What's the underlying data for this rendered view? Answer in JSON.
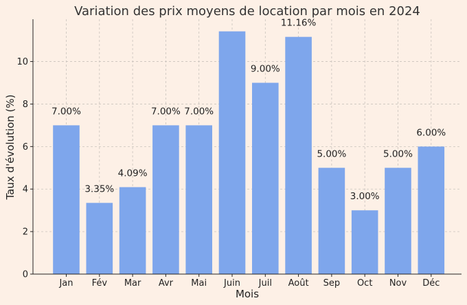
{
  "chart_data": {
    "type": "bar",
    "title": "Variation des prix moyens de location par mois en 2024",
    "xlabel": "Mois",
    "ylabel": "Taux d'évolution (%)",
    "categories": [
      "Jan",
      "Fév",
      "Mar",
      "Avr",
      "Mai",
      "Juin",
      "Juil",
      "Août",
      "Sep",
      "Oct",
      "Nov",
      "Déc"
    ],
    "values": [
      7.0,
      3.35,
      4.09,
      7.0,
      7.0,
      11.42,
      9.0,
      11.16,
      5.0,
      3.0,
      5.0,
      6.0
    ],
    "data_labels": [
      "7.00%",
      "3.35%",
      "4.09%",
      "7.00%",
      "7.00%",
      "",
      "9.00%",
      "11.16%",
      "5.00%",
      "3.00%",
      "5.00%",
      "6.00%"
    ],
    "ylim": [
      0,
      11.99
    ],
    "yticks": [
      0,
      2,
      4,
      6,
      8,
      10
    ],
    "grid": true,
    "colors": {
      "bar": "#7EA6EC",
      "background": "#FDF0E6"
    }
  }
}
